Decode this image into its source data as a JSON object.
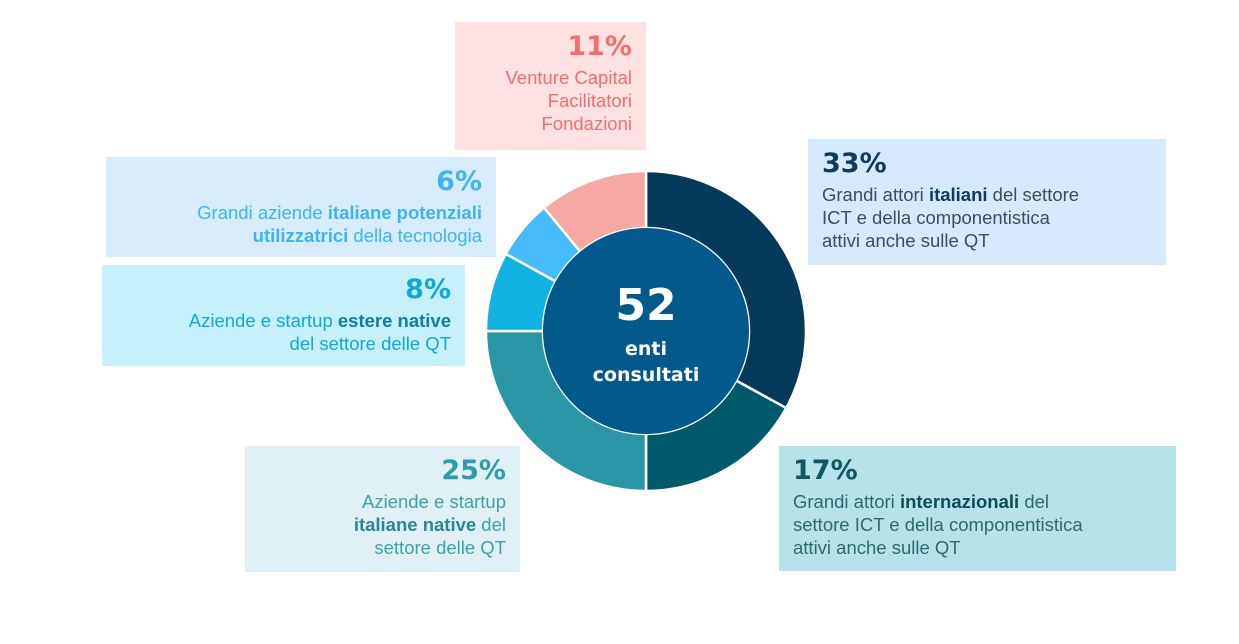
{
  "chart_data": {
    "type": "pie",
    "center": {
      "value": "52",
      "line1": "enti",
      "line2": "consultati"
    },
    "segments": [
      {
        "key": "s1",
        "value": 33,
        "color": "#063a5a",
        "percent_label": "33%",
        "lines": [
          [
            {
              "t": "Grandi attori ",
              "b": false
            },
            {
              "t": "italiani",
              "b": true
            },
            {
              "t": " del settore",
              "b": false
            }
          ],
          [
            {
              "t": "ICT e della componentistica",
              "b": false
            }
          ],
          [
            {
              "t": "attivi anche sulle QT",
              "b": false
            }
          ]
        ]
      },
      {
        "key": "s2",
        "value": 17,
        "color": "#005a6b",
        "percent_label": "17%",
        "lines": [
          [
            {
              "t": "Grandi attori ",
              "b": false
            },
            {
              "t": "internazionali",
              "b": true
            },
            {
              "t": " del",
              "b": false
            }
          ],
          [
            {
              "t": "settore ICT e della componentistica",
              "b": false
            }
          ],
          [
            {
              "t": "attivi anche sulle QT",
              "b": false
            }
          ]
        ]
      },
      {
        "key": "s3",
        "value": 25,
        "color": "#2b96a5",
        "percent_label": "25%",
        "lines": [
          [
            {
              "t": "Aziende e startup",
              "b": false
            }
          ],
          [
            {
              "t": "italiane native",
              "b": true
            },
            {
              "t": " del",
              "b": false
            }
          ],
          [
            {
              "t": "settore delle QT",
              "b": false
            }
          ]
        ]
      },
      {
        "key": "s4",
        "value": 8,
        "color": "#10b2e0",
        "percent_label": "8%",
        "lines": [
          [
            {
              "t": "Aziende e startup ",
              "b": false
            },
            {
              "t": "estere native",
              "b": true
            }
          ],
          [
            {
              "t": "del settore delle QT",
              "b": false
            }
          ]
        ]
      },
      {
        "key": "s5",
        "value": 6,
        "color": "#46bdf8",
        "percent_label": "6%",
        "lines": [
          [
            {
              "t": "Grandi aziende ",
              "b": false
            },
            {
              "t": "italiane potenziali",
              "b": true
            }
          ],
          [
            {
              "t": "utilizzatrici",
              "b": true
            },
            {
              "t": " della tecnologia",
              "b": false
            }
          ]
        ]
      },
      {
        "key": "s6",
        "value": 11,
        "color": "#f8a8a3",
        "percent_label": "11%",
        "lines": [
          [
            {
              "t": "Venture Capital",
              "b": false
            }
          ],
          [
            {
              "t": "Facilitatori",
              "b": false
            }
          ],
          [
            {
              "t": "Fondazioni",
              "b": false
            }
          ]
        ]
      }
    ]
  },
  "colors": {
    "center_fill": "#03588c",
    "separator": "#ffffff"
  }
}
